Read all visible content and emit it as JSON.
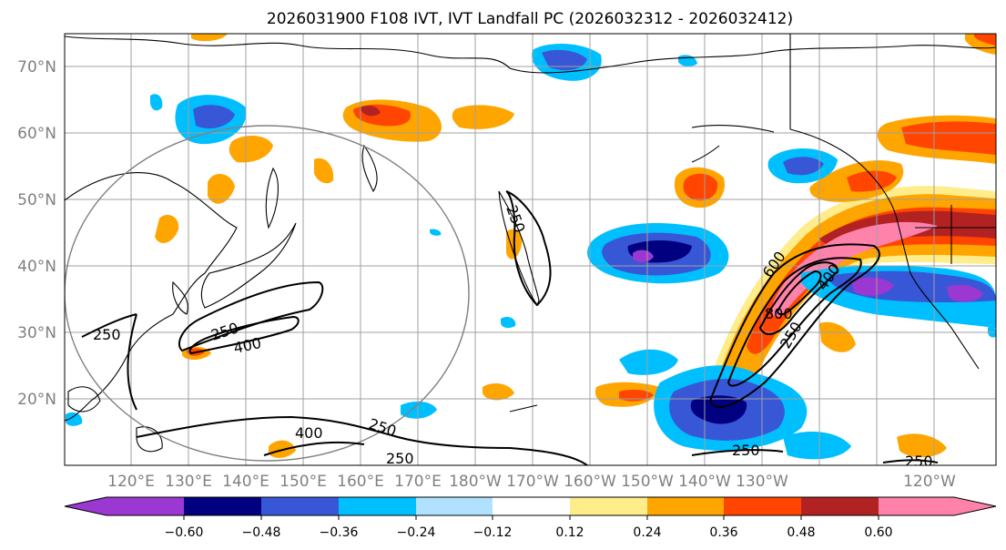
{
  "title": "2026031900 F108 IVT, IVT Landfall PC (2026032312 - 2026032412)",
  "lat_labels": [
    "70°N",
    "60°N",
    "50°N",
    "40°N",
    "30°N",
    "20°N"
  ],
  "lon_labels": [
    "120°E",
    "130°E",
    "140°E",
    "150°E",
    "160°E",
    "170°E",
    "180°W",
    "170°W",
    "160°W",
    "150°W",
    "140°W",
    "130°W",
    "120°W"
  ],
  "colorbar": {
    "colors": [
      "#9a38d1",
      "#000080",
      "#3757d6",
      "#00bfff",
      "#b0e2ff",
      "#ffffff",
      "#ffec8b",
      "#ffa500",
      "#ff4500",
      "#b22222",
      "#ff82ab"
    ],
    "tick_labels": [
      "−0.60",
      "−0.48",
      "−0.36",
      "−0.24",
      "−0.12",
      "0.12",
      "0.24",
      "0.36",
      "0.48",
      "0.60"
    ]
  },
  "contour_labels": [
    "250",
    "250",
    "400",
    "250",
    "400",
    "250",
    "250",
    "600",
    "800",
    "400",
    "250",
    "250",
    "250"
  ],
  "colors": {
    "contour": "#000000",
    "coast": "#000000",
    "grid": "#a0a0a0",
    "circle": "#808080"
  }
}
